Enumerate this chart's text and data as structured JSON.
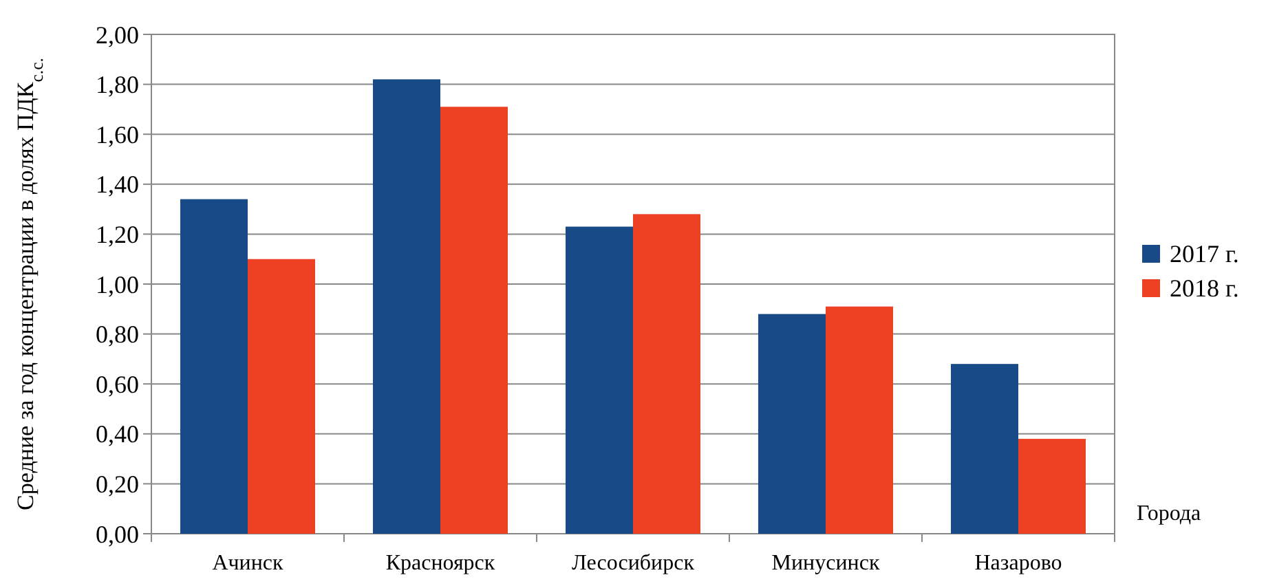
{
  "chart_data": {
    "type": "bar",
    "ylabel": "Средние за год концентрации в долях ПДК$_{с.с.}$",
    "xlabel": "Города",
    "categories": [
      "Ачинск",
      "Красноярск",
      "Лесосибирск",
      "Минусинск",
      "Назарово"
    ],
    "series": [
      {
        "name": "2017 г.",
        "color": "#174a86",
        "values": [
          1.34,
          1.82,
          1.23,
          0.88,
          0.68
        ]
      },
      {
        "name": "2018 г.",
        "color": "#ee4124",
        "values": [
          1.1,
          1.71,
          1.28,
          0.91,
          0.38
        ]
      }
    ],
    "ylim": [
      0,
      2
    ],
    "yticks": [
      {
        "value": 0,
        "label": "0,00"
      },
      {
        "value": 0.2,
        "label": "0,20"
      },
      {
        "value": 0.4,
        "label": "0,40"
      },
      {
        "value": 0.6,
        "label": "0,60"
      },
      {
        "value": 0.8,
        "label": "0,80"
      },
      {
        "value": 1,
        "label": "1,00"
      },
      {
        "value": 1.2,
        "label": "1,20"
      },
      {
        "value": 1.4,
        "label": "1,40"
      },
      {
        "value": 1.6,
        "label": "1,60"
      },
      {
        "value": 1.8,
        "label": "1,80"
      },
      {
        "value": 2,
        "label": "2,00"
      }
    ],
    "grid": "y",
    "legend": "right"
  }
}
